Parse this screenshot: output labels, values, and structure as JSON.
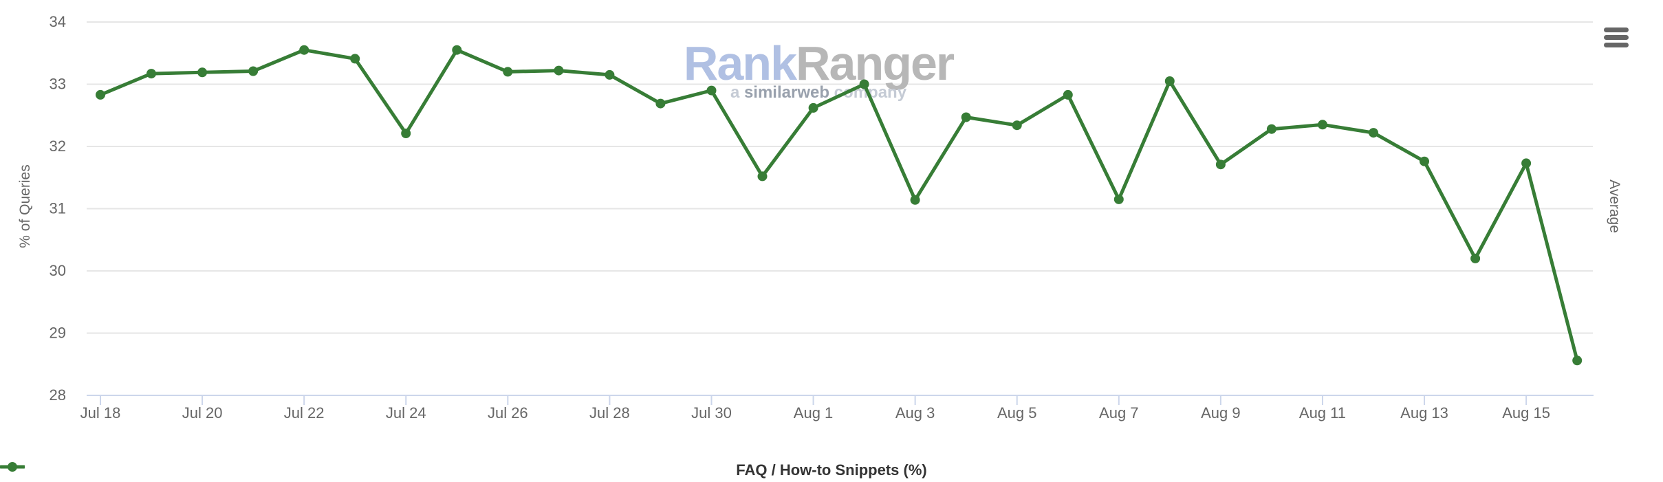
{
  "chart_data": {
    "type": "line",
    "title": "",
    "categories": [
      "Jul 18",
      "Jul 19",
      "Jul 20",
      "Jul 21",
      "Jul 22",
      "Jul 23",
      "Jul 24",
      "Jul 25",
      "Jul 26",
      "Jul 27",
      "Jul 28",
      "Jul 29",
      "Jul 30",
      "Jul 31",
      "Aug 1",
      "Aug 2",
      "Aug 3",
      "Aug 4",
      "Aug 5",
      "Aug 6",
      "Aug 7",
      "Aug 8",
      "Aug 9",
      "Aug 10",
      "Aug 11",
      "Aug 12",
      "Aug 13",
      "Aug 14",
      "Aug 15",
      "Aug 16"
    ],
    "series": [
      {
        "name": "FAQ / How-to Snippets (%)",
        "values": [
          32.83,
          33.17,
          33.19,
          33.21,
          33.55,
          33.41,
          32.21,
          33.55,
          33.2,
          33.22,
          33.15,
          32.69,
          32.9,
          31.52,
          32.62,
          33.0,
          31.14,
          32.47,
          32.34,
          32.83,
          31.15,
          33.05,
          31.71,
          32.28,
          32.35,
          32.22,
          31.76,
          30.2,
          31.73,
          28.56
        ]
      }
    ],
    "x_tick_labels": [
      "Jul 18",
      "Jul 20",
      "Jul 22",
      "Jul 24",
      "Jul 26",
      "Jul 28",
      "Jul 30",
      "Aug 1",
      "Aug 3",
      "Aug 5",
      "Aug 7",
      "Aug 9",
      "Aug 11",
      "Aug 13",
      "Aug 15"
    ],
    "y_ticks": [
      28,
      29,
      30,
      31,
      32,
      33,
      34
    ],
    "ylim": [
      28,
      34
    ],
    "xlabel": "",
    "ylabel": "% of Queries",
    "right_axis_label": "Average",
    "grid": true,
    "legend_position": "bottom-center"
  },
  "legend": {
    "label": "FAQ / How-to Snippets (%)"
  },
  "watermark": {
    "brand_part1": "Rank",
    "brand_part2": "Ranger",
    "sub_part1": "a ",
    "sub_part2": "similarweb",
    "sub_part3": " company"
  },
  "colors": {
    "line": "#377D36",
    "grid": "#e6e6e6",
    "axis": "#ccd6eb",
    "tick_label": "#666666",
    "legend_text": "#333333",
    "watermark_blue": "#b0c0e3",
    "watermark_gray": "#b7b7b7",
    "watermark_sub_dark": "#99a1ad",
    "watermark_sub_light": "#c5cbd5"
  }
}
